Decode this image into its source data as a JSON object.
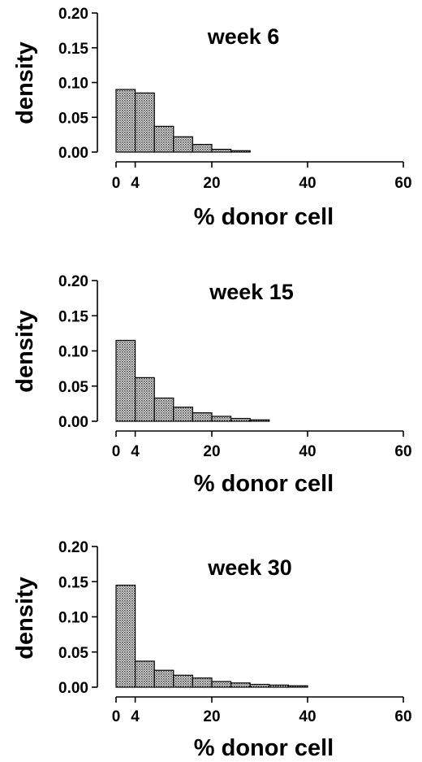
{
  "chart_data": [
    {
      "type": "bar",
      "title": "week 6",
      "xlabel": "% donor cell",
      "ylabel": "density",
      "xlim": [
        0,
        60
      ],
      "ylim": [
        0,
        0.2
      ],
      "xticks": [
        "0",
        "4",
        "20",
        "40",
        "60"
      ],
      "xtick_values": [
        0,
        4,
        20,
        40,
        60
      ],
      "yticks": [
        "0.00",
        "0.05",
        "0.10",
        "0.15",
        "0.20"
      ],
      "ytick_values": [
        0,
        0.05,
        0.1,
        0.15,
        0.2
      ],
      "grid": false,
      "bins": [
        {
          "x0": 0,
          "x1": 4,
          "density": 0.09
        },
        {
          "x0": 4,
          "x1": 8,
          "density": 0.085
        },
        {
          "x0": 8,
          "x1": 12,
          "density": 0.037
        },
        {
          "x0": 12,
          "x1": 16,
          "density": 0.022
        },
        {
          "x0": 16,
          "x1": 20,
          "density": 0.011
        },
        {
          "x0": 20,
          "x1": 24,
          "density": 0.004
        },
        {
          "x0": 24,
          "x1": 28,
          "density": 0.002
        }
      ]
    },
    {
      "type": "bar",
      "title": "week 15",
      "xlabel": "% donor cell",
      "ylabel": "density",
      "xlim": [
        0,
        60
      ],
      "ylim": [
        0,
        0.2
      ],
      "xticks": [
        "0",
        "4",
        "20",
        "40",
        "60"
      ],
      "xtick_values": [
        0,
        4,
        20,
        40,
        60
      ],
      "yticks": [
        "0.00",
        "0.05",
        "0.10",
        "0.15",
        "0.20"
      ],
      "ytick_values": [
        0,
        0.05,
        0.1,
        0.15,
        0.2
      ],
      "grid": false,
      "bins": [
        {
          "x0": 0,
          "x1": 4,
          "density": 0.115
        },
        {
          "x0": 4,
          "x1": 8,
          "density": 0.062
        },
        {
          "x0": 8,
          "x1": 12,
          "density": 0.033
        },
        {
          "x0": 12,
          "x1": 16,
          "density": 0.02
        },
        {
          "x0": 16,
          "x1": 20,
          "density": 0.012
        },
        {
          "x0": 20,
          "x1": 24,
          "density": 0.007
        },
        {
          "x0": 24,
          "x1": 28,
          "density": 0.004
        },
        {
          "x0": 28,
          "x1": 32,
          "density": 0.002
        }
      ]
    },
    {
      "type": "bar",
      "title": "week 30",
      "xlabel": "% donor cell",
      "ylabel": "density",
      "xlim": [
        0,
        60
      ],
      "ylim": [
        0,
        0.2
      ],
      "xticks": [
        "0",
        "4",
        "20",
        "40",
        "60"
      ],
      "xtick_values": [
        0,
        4,
        20,
        40,
        60
      ],
      "yticks": [
        "0.00",
        "0.05",
        "0.10",
        "0.15",
        "0.20"
      ],
      "ytick_values": [
        0,
        0.05,
        0.1,
        0.15,
        0.2
      ],
      "grid": false,
      "bins": [
        {
          "x0": 0,
          "x1": 4,
          "density": 0.145
        },
        {
          "x0": 4,
          "x1": 8,
          "density": 0.037
        },
        {
          "x0": 8,
          "x1": 12,
          "density": 0.024
        },
        {
          "x0": 12,
          "x1": 16,
          "density": 0.017
        },
        {
          "x0": 16,
          "x1": 20,
          "density": 0.013
        },
        {
          "x0": 20,
          "x1": 24,
          "density": 0.008
        },
        {
          "x0": 24,
          "x1": 28,
          "density": 0.006
        },
        {
          "x0": 28,
          "x1": 32,
          "density": 0.004
        },
        {
          "x0": 32,
          "x1": 36,
          "density": 0.003
        },
        {
          "x0": 36,
          "x1": 40,
          "density": 0.002
        }
      ]
    }
  ]
}
